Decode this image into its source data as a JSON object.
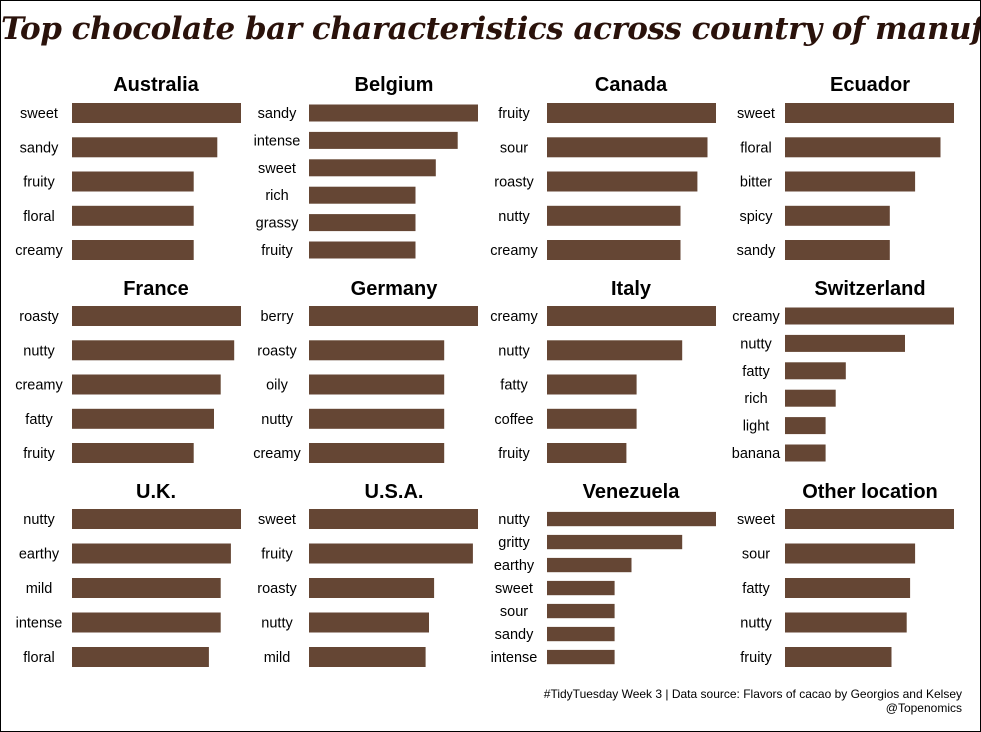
{
  "title": "Top chocolate bar characteristics across country of manufacturer",
  "caption": {
    "line1": "#TidyTuesday Week 3 | Data source: Flavors of cacao by Georgios and Kelsey",
    "line2": "@Topenomics"
  },
  "colors": {
    "bar": "#654634",
    "title": "#2a120b"
  },
  "chart_data": [
    {
      "type": "bar",
      "orientation": "horizontal",
      "title": "Australia",
      "categories": [
        "sweet",
        "sandy",
        "fruity",
        "floral",
        "creamy"
      ],
      "values": [
        1.0,
        0.86,
        0.72,
        0.72,
        0.72
      ]
    },
    {
      "type": "bar",
      "orientation": "horizontal",
      "title": "Belgium",
      "categories": [
        "sandy",
        "intense",
        "sweet",
        "rich",
        "grassy",
        "fruity"
      ],
      "values": [
        1.0,
        0.88,
        0.75,
        0.63,
        0.63,
        0.63
      ]
    },
    {
      "type": "bar",
      "orientation": "horizontal",
      "title": "Canada",
      "categories": [
        "fruity",
        "sour",
        "roasty",
        "nutty",
        "creamy"
      ],
      "values": [
        1.0,
        0.95,
        0.89,
        0.79,
        0.79
      ]
    },
    {
      "type": "bar",
      "orientation": "horizontal",
      "title": "Ecuador",
      "categories": [
        "sweet",
        "floral",
        "bitter",
        "spicy",
        "sandy"
      ],
      "values": [
        1.0,
        0.92,
        0.77,
        0.62,
        0.62
      ]
    },
    {
      "type": "bar",
      "orientation": "horizontal",
      "title": "France",
      "categories": [
        "roasty",
        "nutty",
        "creamy",
        "fatty",
        "fruity"
      ],
      "values": [
        1.0,
        0.96,
        0.88,
        0.84,
        0.72
      ]
    },
    {
      "type": "bar",
      "orientation": "horizontal",
      "title": "Germany",
      "categories": [
        "berry",
        "roasty",
        "oily",
        "nutty",
        "creamy"
      ],
      "values": [
        1.0,
        0.8,
        0.8,
        0.8,
        0.8
      ]
    },
    {
      "type": "bar",
      "orientation": "horizontal",
      "title": "Italy",
      "categories": [
        "creamy",
        "nutty",
        "fatty",
        "coffee",
        "fruity"
      ],
      "values": [
        1.0,
        0.8,
        0.53,
        0.53,
        0.47
      ]
    },
    {
      "type": "bar",
      "orientation": "horizontal",
      "title": "Switzerland",
      "categories": [
        "creamy",
        "nutty",
        "fatty",
        "rich",
        "light",
        "banana"
      ],
      "values": [
        1.0,
        0.71,
        0.36,
        0.3,
        0.24,
        0.24
      ]
    },
    {
      "type": "bar",
      "orientation": "horizontal",
      "title": "U.K.",
      "categories": [
        "nutty",
        "earthy",
        "mild",
        "intense",
        "floral"
      ],
      "values": [
        1.0,
        0.94,
        0.88,
        0.88,
        0.81
      ]
    },
    {
      "type": "bar",
      "orientation": "horizontal",
      "title": "U.S.A.",
      "categories": [
        "sweet",
        "fruity",
        "roasty",
        "nutty",
        "mild"
      ],
      "values": [
        1.0,
        0.97,
        0.74,
        0.71,
        0.69
      ]
    },
    {
      "type": "bar",
      "orientation": "horizontal",
      "title": "Venezuela",
      "categories": [
        "nutty",
        "gritty",
        "earthy",
        "sweet",
        "sour",
        "sandy",
        "intense"
      ],
      "values": [
        1.0,
        0.8,
        0.5,
        0.4,
        0.4,
        0.4,
        0.4
      ]
    },
    {
      "type": "bar",
      "orientation": "horizontal",
      "title": "Other location",
      "categories": [
        "sweet",
        "sour",
        "fatty",
        "nutty",
        "fruity"
      ],
      "values": [
        1.0,
        0.77,
        0.74,
        0.72,
        0.63
      ]
    }
  ]
}
